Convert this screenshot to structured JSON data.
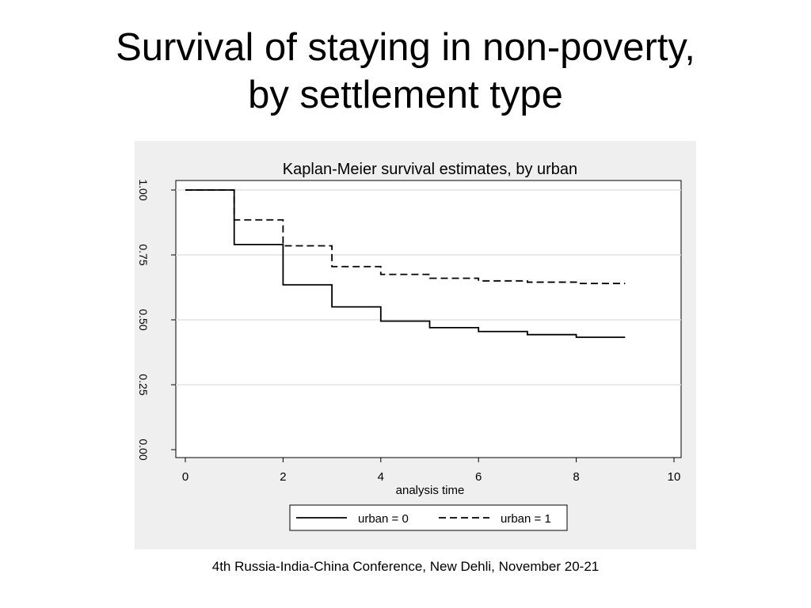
{
  "slide": {
    "title_line1": "Survival of staying in non-poverty,",
    "title_line2": "by settlement type",
    "footer": "4th Russia-India-China Conference, New Dehli, November 20-21"
  },
  "chart_data": {
    "type": "line",
    "step": true,
    "title": "Kaplan-Meier survival estimates, by urban",
    "xlabel": "analysis time",
    "ylabel": "",
    "xlim": [
      0,
      10
    ],
    "ylim": [
      0,
      1
    ],
    "x_ticks": [
      "0",
      "2",
      "4",
      "6",
      "8",
      "10"
    ],
    "y_ticks": [
      "0.00",
      "0.25",
      "0.50",
      "0.75",
      "1.00"
    ],
    "grid": true,
    "legend_position": "bottom",
    "series": [
      {
        "name": "urban = 0",
        "style": "solid",
        "color": "#000000",
        "x": [
          0,
          1,
          2,
          3,
          4,
          5,
          6,
          7,
          8,
          9
        ],
        "y": [
          1.0,
          0.79,
          0.635,
          0.55,
          0.495,
          0.47,
          0.455,
          0.443,
          0.433,
          0.433
        ]
      },
      {
        "name": "urban = 1",
        "style": "dashed",
        "color": "#000000",
        "x": [
          0,
          1,
          2,
          3,
          4,
          5,
          6,
          7,
          8,
          9
        ],
        "y": [
          1.0,
          0.885,
          0.785,
          0.705,
          0.675,
          0.66,
          0.65,
          0.645,
          0.64,
          0.64
        ]
      }
    ]
  }
}
